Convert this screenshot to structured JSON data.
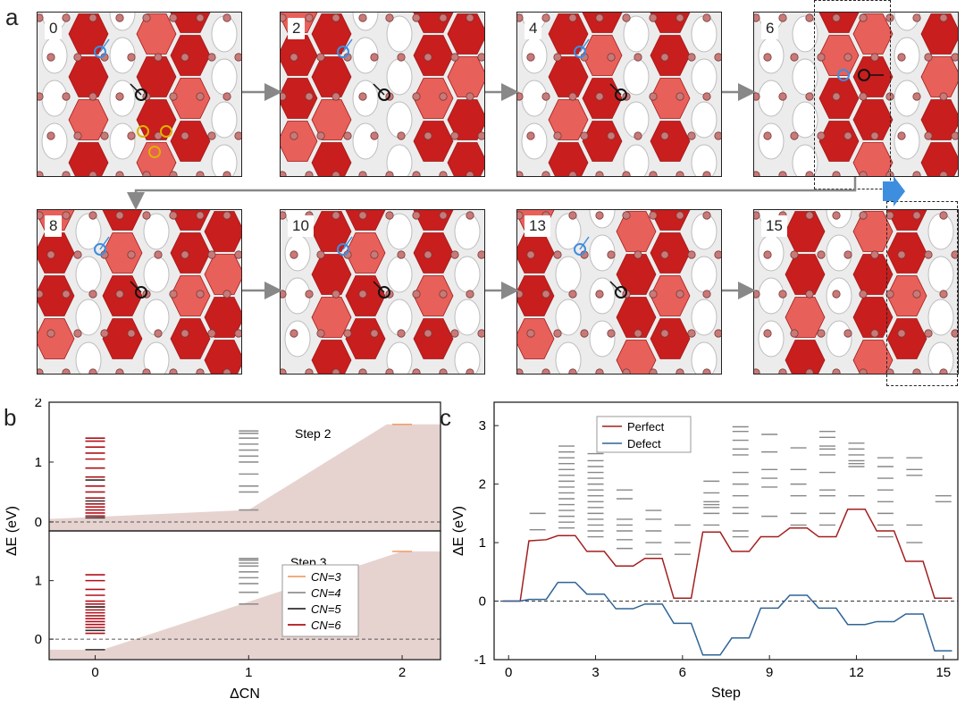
{
  "panels": {
    "a": "a",
    "b": "b",
    "c": "c"
  },
  "frames": [
    {
      "label": "0"
    },
    {
      "label": "2"
    },
    {
      "label": "4"
    },
    {
      "label": "6"
    },
    {
      "label": "8"
    },
    {
      "label": "10"
    },
    {
      "label": "13"
    },
    {
      "label": "15"
    }
  ],
  "colors": {
    "red": "#c81e1e",
    "lightred": "#e8605a",
    "atom": "#c87a78",
    "grey": "#d8d8d8",
    "perfect": "#a31f1f",
    "defect": "#2f6496",
    "fill": "#e6d3d0",
    "arrow": "#888888",
    "accent_blue": "#3d8ede",
    "cn3": "#f0a070",
    "cn4": "#909090",
    "cn5": "#303030",
    "cn6": "#b0101a"
  },
  "chart_data": [
    {
      "type": "bar",
      "panel": "b",
      "subplots": [
        {
          "annotation": "Step 2",
          "ylim": [
            -0.15,
            2.0
          ],
          "yticks": [
            0,
            1,
            2
          ],
          "baseline": 0,
          "fill_envelope": {
            "x": [
              -0.3,
              1.0,
              1.9,
              2.25
            ],
            "y": [
              0.05,
              0.2,
              1.63,
              1.63
            ]
          },
          "levels": [
            {
              "x": 0,
              "cn": "CN=6",
              "energies": [
                0.1,
                0.15,
                0.2,
                0.25,
                0.3,
                0.4,
                0.5,
                0.6,
                0.75,
                0.9,
                1.05,
                1.15,
                1.25,
                1.35,
                1.4
              ]
            },
            {
              "x": 0,
              "cn": "CN=5",
              "energies": [
                0.07,
                0.35,
                0.7
              ]
            },
            {
              "x": 1,
              "cn": "CN=4",
              "energies": [
                0.2,
                0.5,
                0.6,
                0.8,
                1.0,
                1.1,
                1.2,
                1.3,
                1.4,
                1.48,
                1.52
              ]
            },
            {
              "x": 2,
              "cn": "CN=3",
              "energies": [
                1.63
              ]
            }
          ]
        },
        {
          "annotation": "Step 3",
          "ylim": [
            -0.35,
            1.85
          ],
          "yticks": [
            0,
            1
          ],
          "baseline": 0,
          "fill_envelope": {
            "x": [
              -0.3,
              0.05,
              2.0,
              2.25
            ],
            "y": [
              -0.18,
              -0.18,
              1.5,
              1.5
            ]
          },
          "levels": [
            {
              "x": 0,
              "cn": "CN=6",
              "energies": [
                0.1,
                0.2,
                0.25,
                0.3,
                0.35,
                0.4,
                0.45,
                0.5,
                0.55,
                0.6,
                0.65,
                0.75,
                0.85,
                1.0,
                1.1
              ]
            },
            {
              "x": 0,
              "cn": "CN=5",
              "energies": [
                -0.18,
                0.15,
                0.55
              ]
            },
            {
              "x": 1,
              "cn": "CN=4",
              "energies": [
                0.6,
                0.8,
                0.95,
                1.05,
                1.15,
                1.25,
                1.3,
                1.35,
                1.38
              ]
            },
            {
              "x": 2,
              "cn": "CN=3",
              "energies": [
                1.5
              ]
            }
          ]
        }
      ],
      "xlabel": "ΔCN",
      "ylabel": "ΔE (eV)",
      "xticks": [
        0,
        1,
        2
      ],
      "xlim": [
        -0.3,
        2.25
      ],
      "legend": {
        "placement": "bottom-right",
        "entries": [
          {
            "label": "CN=3",
            "cn": "3"
          },
          {
            "label": "CN=4",
            "cn": "4"
          },
          {
            "label": "CN=5",
            "cn": "5"
          },
          {
            "label": "CN=6",
            "cn": "6"
          }
        ]
      }
    },
    {
      "type": "line",
      "panel": "c",
      "xlabel": "Step",
      "ylabel": "ΔE (eV)",
      "xlim": [
        -0.5,
        15.5
      ],
      "ylim": [
        -1.0,
        3.4
      ],
      "xticks": [
        0,
        3,
        6,
        9,
        12,
        15
      ],
      "yticks": [
        -1,
        0,
        1,
        2,
        3
      ],
      "baseline": 0,
      "legend": {
        "placement": "top-left"
      },
      "series": [
        {
          "name": "Perfect",
          "x": [
            -0.2,
            0.4,
            0.7,
            1.3,
            1.7,
            2.3,
            2.7,
            3.3,
            3.7,
            4.3,
            4.7,
            5.3,
            5.7,
            6.3,
            6.7,
            7.3,
            7.7,
            8.3,
            8.7,
            9.3,
            9.7,
            10.3,
            10.7,
            11.3,
            11.7,
            12.3,
            12.7,
            13.3,
            13.7,
            14.3,
            14.7,
            15.3
          ],
          "y": [
            0,
            0,
            1.03,
            1.05,
            1.12,
            1.12,
            0.85,
            0.85,
            0.6,
            0.6,
            0.73,
            0.73,
            0.05,
            0.05,
            1.18,
            1.18,
            0.85,
            0.85,
            1.1,
            1.1,
            1.25,
            1.25,
            1.1,
            1.1,
            1.57,
            1.57,
            1.2,
            1.2,
            0.68,
            0.68,
            0.05,
            0.05
          ]
        },
        {
          "name": "Defect",
          "x": [
            -0.2,
            0.4,
            0.7,
            1.3,
            1.7,
            2.3,
            2.7,
            3.3,
            3.7,
            4.3,
            4.7,
            5.3,
            5.7,
            6.3,
            6.7,
            7.3,
            7.7,
            8.3,
            8.7,
            9.3,
            9.7,
            10.3,
            10.7,
            11.3,
            11.7,
            12.3,
            12.7,
            13.3,
            13.7,
            14.3,
            14.7,
            15.3
          ],
          "y": [
            0,
            0,
            0.03,
            0.03,
            0.32,
            0.32,
            0.12,
            0.12,
            -0.13,
            -0.13,
            -0.05,
            -0.05,
            -0.38,
            -0.38,
            -0.92,
            -0.92,
            -0.63,
            -0.63,
            -0.12,
            -0.12,
            0.1,
            0.1,
            -0.12,
            -0.12,
            -0.4,
            -0.4,
            -0.35,
            -0.35,
            -0.22,
            -0.22,
            -0.85,
            -0.85
          ]
        }
      ],
      "level_stacks": [
        {
          "x": 1,
          "energies": [
            1.22,
            1.5
          ]
        },
        {
          "x": 2,
          "energies": [
            1.25,
            1.35,
            1.45,
            1.55,
            1.65,
            1.75,
            1.85,
            1.95,
            2.05,
            2.15,
            2.25,
            2.35,
            2.45,
            2.55,
            2.65
          ]
        },
        {
          "x": 3,
          "energies": [
            1.1,
            1.2,
            1.3,
            1.4,
            1.5,
            1.6,
            1.7,
            1.8,
            1.9,
            2.0,
            2.1,
            2.2,
            2.3,
            2.4,
            2.52
          ]
        },
        {
          "x": 4,
          "energies": [
            0.9,
            1.05,
            1.2,
            1.3,
            1.4,
            1.75,
            1.9
          ]
        },
        {
          "x": 5,
          "energies": [
            0.8,
            1.0,
            1.2,
            1.4,
            1.55
          ]
        },
        {
          "x": 6,
          "energies": [
            0.8,
            1.0,
            1.3
          ]
        },
        {
          "x": 7,
          "energies": [
            1.3,
            1.5,
            1.6,
            1.65,
            1.7,
            1.85,
            2.05
          ]
        },
        {
          "x": 8,
          "energies": [
            1.1,
            1.2,
            1.5,
            1.6,
            1.8,
            2.0,
            2.2,
            2.5,
            2.6,
            2.75,
            2.9,
            2.98
          ]
        },
        {
          "x": 9,
          "energies": [
            1.45,
            1.95,
            2.1,
            2.25,
            2.55,
            2.85
          ]
        },
        {
          "x": 10,
          "energies": [
            1.3,
            1.5,
            1.8,
            2.0,
            2.25,
            2.62
          ]
        },
        {
          "x": 11,
          "energies": [
            1.3,
            1.5,
            1.8,
            1.9,
            2.2,
            2.5,
            2.6,
            2.65,
            2.8,
            2.9
          ]
        },
        {
          "x": 12,
          "energies": [
            1.8,
            2.3,
            2.35,
            2.4,
            2.5,
            2.6,
            2.7
          ]
        },
        {
          "x": 13,
          "energies": [
            1.1,
            1.3,
            1.5,
            1.7,
            1.9,
            2.1,
            2.3,
            2.45
          ]
        },
        {
          "x": 14,
          "energies": [
            1.0,
            1.3,
            2.15,
            2.25,
            2.45
          ]
        },
        {
          "x": 15,
          "energies": [
            1.7,
            1.8
          ]
        }
      ]
    }
  ]
}
